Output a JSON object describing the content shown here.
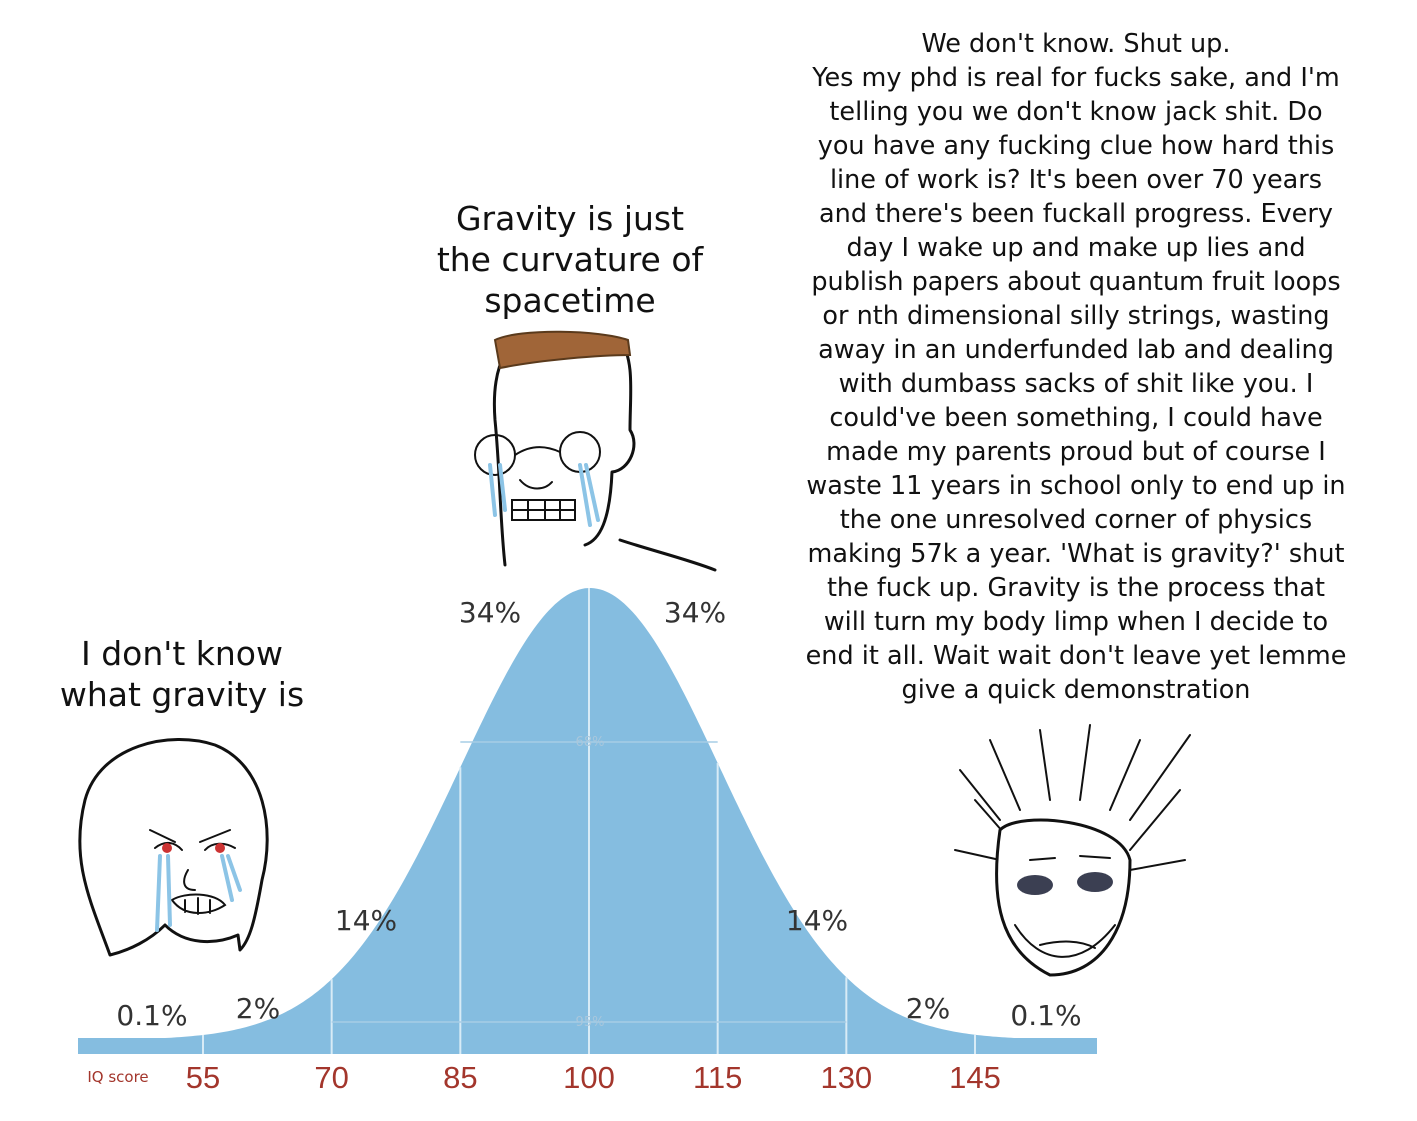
{
  "captions": {
    "left": [
      "I don't know",
      "what gravity is"
    ],
    "middle": [
      "Gravity is just",
      "the curvature of",
      "spacetime"
    ],
    "right": [
      "We don't know. Shut up.",
      "Yes my phd is real for fucks sake, and I'm",
      "telling you we don't know jack shit. Do",
      "you have any fucking clue how hard this",
      "line of work is? It's been over 70 years",
      "and there's been fuckall progress. Every",
      "day I wake up and make up lies and",
      "publish papers about quantum fruit loops",
      "or nth dimensional silly strings, wasting",
      "away in an underfunded lab and dealing",
      "with dumbass sacks of shit like you. I",
      "could've been something, I could have",
      "made my parents proud but of course I",
      "waste 11 years in school only to end up in",
      "the one unresolved corner of physics",
      "making 57k a year. 'What is gravity?' shut",
      "the fuck up. Gravity is the process that",
      "will turn my body limp when I decide to",
      "end it all. Wait wait don't leave yet lemme",
      "give a quick demonstration"
    ]
  },
  "curve": {
    "axis_label": "IQ score",
    "ticks": [
      55,
      70,
      85,
      100,
      115,
      130,
      145
    ],
    "segment_labels": [
      "0.1%",
      "2%",
      "14%",
      "34%",
      "34%",
      "14%",
      "2%",
      "0.1%"
    ],
    "inner_labels": [
      "68%",
      "95%"
    ]
  }
}
